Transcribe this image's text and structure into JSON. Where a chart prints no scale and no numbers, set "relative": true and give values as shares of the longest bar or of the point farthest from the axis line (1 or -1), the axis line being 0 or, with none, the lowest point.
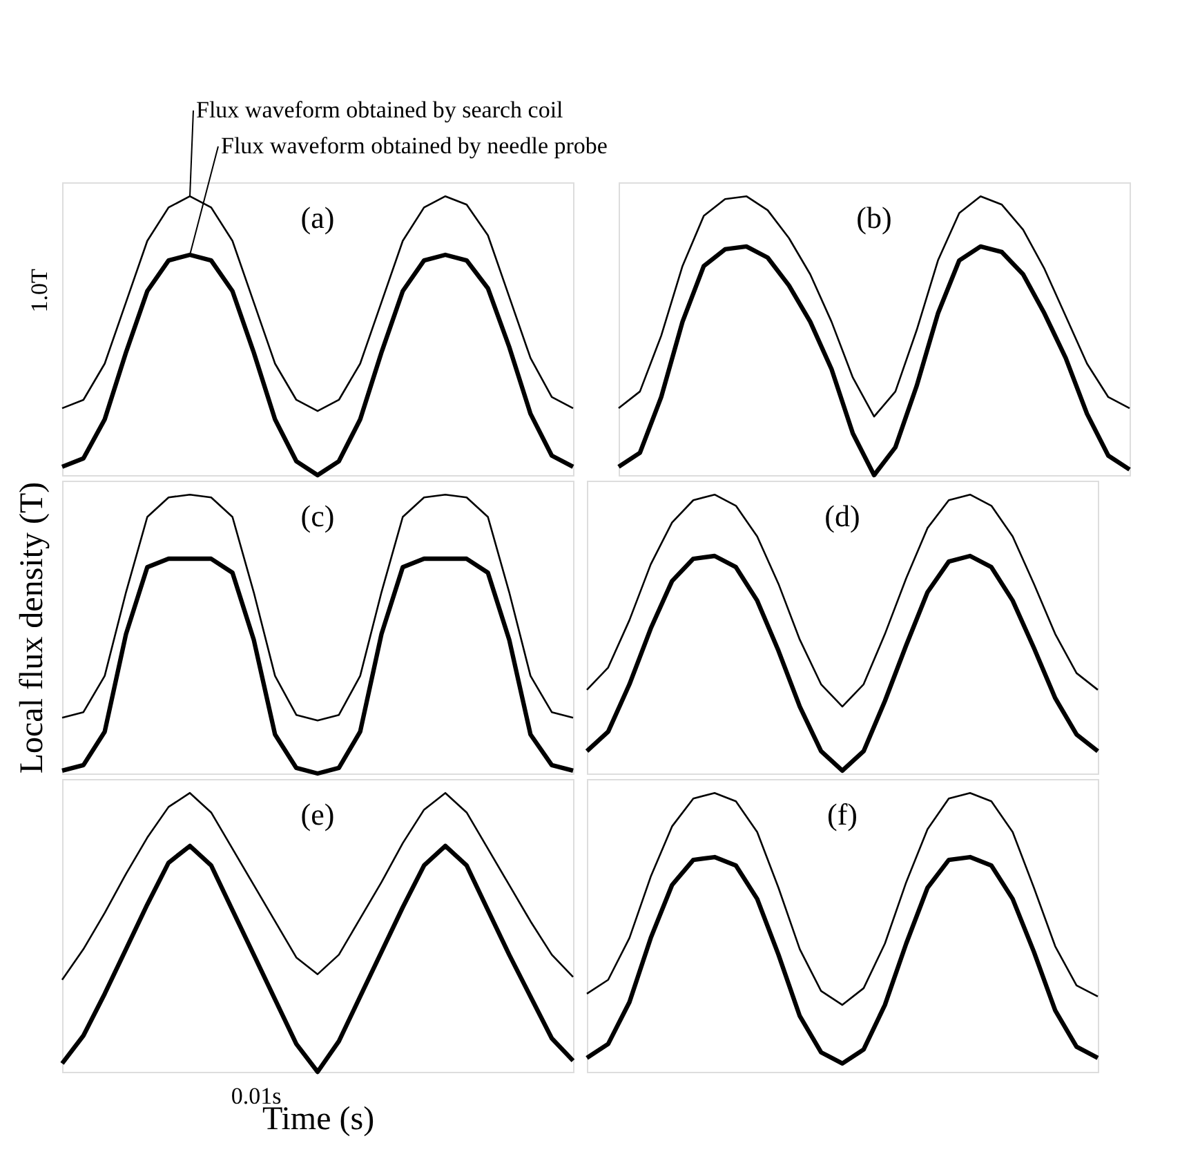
{
  "chart_data": [
    {
      "type": "line",
      "relative": true,
      "categories": [
        null,
        null,
        null,
        null,
        null,
        null,
        null,
        null,
        null,
        null,
        null,
        null,
        null,
        null,
        null,
        null,
        null,
        null,
        null,
        null,
        null,
        null,
        null,
        null,
        null
      ],
      "ylabel": null,
      "annotations": [
        "(a)",
        {
          "text": "1.0T"
        }
      ],
      "series": [
        {
          "name": "Flux waveform obtained by search coil",
          "color": "#000000",
          "values": [
            0.24,
            0.27,
            0.4,
            0.62,
            0.84,
            0.96,
            1.0,
            0.96,
            0.84,
            0.62,
            0.4,
            0.27,
            0.23,
            0.27,
            0.4,
            0.62,
            0.84,
            0.96,
            1.0,
            0.97,
            0.86,
            0.64,
            0.42,
            0.28,
            0.24
          ]
        },
        {
          "name": "Flux waveform obtained by needle probe",
          "color": "#000000",
          "values": [
            0.03,
            0.06,
            0.2,
            0.44,
            0.66,
            0.77,
            0.79,
            0.77,
            0.66,
            0.44,
            0.2,
            0.05,
            0.0,
            0.05,
            0.2,
            0.44,
            0.66,
            0.77,
            0.79,
            0.77,
            0.67,
            0.46,
            0.22,
            0.07,
            0.03
          ]
        }
      ]
    },
    {
      "type": "line",
      "relative": true,
      "categories": [
        null,
        null,
        null,
        null,
        null,
        null,
        null,
        null,
        null,
        null,
        null,
        null,
        null,
        null,
        null,
        null,
        null,
        null,
        null,
        null,
        null,
        null,
        null,
        null,
        null
      ],
      "annotations": [
        "(b)"
      ],
      "series": [
        {
          "color": "#000000",
          "values": [
            0.24,
            0.3,
            0.5,
            0.75,
            0.93,
            0.99,
            1.0,
            0.95,
            0.85,
            0.72,
            0.55,
            0.35,
            0.21,
            0.3,
            0.52,
            0.77,
            0.94,
            1.0,
            0.97,
            0.88,
            0.74,
            0.57,
            0.4,
            0.28,
            0.24
          ]
        },
        {
          "color": "#000000",
          "values": [
            0.03,
            0.08,
            0.28,
            0.55,
            0.75,
            0.81,
            0.82,
            0.78,
            0.68,
            0.55,
            0.38,
            0.15,
            0.0,
            0.1,
            0.32,
            0.58,
            0.77,
            0.82,
            0.8,
            0.72,
            0.58,
            0.42,
            0.22,
            0.07,
            0.02
          ]
        }
      ]
    },
    {
      "type": "line",
      "relative": true,
      "categories": [
        null,
        null,
        null,
        null,
        null,
        null,
        null,
        null,
        null,
        null,
        null,
        null,
        null,
        null,
        null,
        null,
        null,
        null,
        null,
        null,
        null,
        null,
        null,
        null,
        null
      ],
      "ylabel": "Local flux density (T)",
      "annotations": [
        "(c)"
      ],
      "series": [
        {
          "color": "#000000",
          "values": [
            0.2,
            0.22,
            0.35,
            0.65,
            0.92,
            0.99,
            1.0,
            0.99,
            0.92,
            0.65,
            0.35,
            0.21,
            0.19,
            0.21,
            0.35,
            0.65,
            0.92,
            0.99,
            1.0,
            0.99,
            0.92,
            0.65,
            0.35,
            0.22,
            0.2
          ]
        },
        {
          "color": "#000000",
          "values": [
            0.01,
            0.03,
            0.15,
            0.5,
            0.74,
            0.77,
            0.77,
            0.77,
            0.72,
            0.48,
            0.14,
            0.02,
            0.0,
            0.02,
            0.15,
            0.5,
            0.74,
            0.77,
            0.77,
            0.77,
            0.72,
            0.48,
            0.14,
            0.03,
            0.01
          ]
        }
      ]
    },
    {
      "type": "line",
      "relative": true,
      "categories": [
        null,
        null,
        null,
        null,
        null,
        null,
        null,
        null,
        null,
        null,
        null,
        null,
        null,
        null,
        null,
        null,
        null,
        null,
        null,
        null,
        null,
        null,
        null,
        null,
        null
      ],
      "annotations": [
        "(d)"
      ],
      "series": [
        {
          "color": "#000000",
          "values": [
            0.3,
            0.38,
            0.55,
            0.75,
            0.9,
            0.98,
            1.0,
            0.96,
            0.85,
            0.68,
            0.48,
            0.32,
            0.24,
            0.32,
            0.5,
            0.7,
            0.88,
            0.98,
            1.0,
            0.96,
            0.85,
            0.68,
            0.5,
            0.36,
            0.3
          ]
        },
        {
          "color": "#000000",
          "values": [
            0.08,
            0.15,
            0.32,
            0.52,
            0.69,
            0.77,
            0.78,
            0.74,
            0.62,
            0.44,
            0.24,
            0.08,
            0.01,
            0.08,
            0.26,
            0.46,
            0.65,
            0.76,
            0.78,
            0.74,
            0.62,
            0.45,
            0.27,
            0.14,
            0.08
          ]
        }
      ]
    },
    {
      "type": "line",
      "relative": true,
      "categories": [
        null,
        null,
        null,
        null,
        null,
        null,
        null,
        null,
        null,
        null,
        null,
        null,
        null,
        null,
        null,
        null,
        null,
        null,
        null,
        null,
        null,
        null,
        null,
        null,
        null
      ],
      "xlabel": "Time (s)",
      "annotations": [
        "(e)",
        {
          "text": "0.01s"
        }
      ],
      "series": [
        {
          "color": "#000000",
          "values": [
            0.33,
            0.44,
            0.57,
            0.71,
            0.84,
            0.95,
            1.0,
            0.93,
            0.8,
            0.67,
            0.54,
            0.41,
            0.35,
            0.42,
            0.55,
            0.68,
            0.82,
            0.94,
            1.0,
            0.93,
            0.8,
            0.67,
            0.54,
            0.42,
            0.34
          ]
        },
        {
          "color": "#000000",
          "values": [
            0.03,
            0.13,
            0.28,
            0.44,
            0.6,
            0.75,
            0.81,
            0.74,
            0.58,
            0.42,
            0.26,
            0.1,
            0.0,
            0.11,
            0.27,
            0.43,
            0.59,
            0.74,
            0.81,
            0.74,
            0.58,
            0.42,
            0.27,
            0.12,
            0.04
          ]
        }
      ]
    },
    {
      "type": "line",
      "relative": true,
      "categories": [
        null,
        null,
        null,
        null,
        null,
        null,
        null,
        null,
        null,
        null,
        null,
        null,
        null,
        null,
        null,
        null,
        null,
        null,
        null,
        null,
        null,
        null,
        null,
        null,
        null
      ],
      "annotations": [
        "(f)"
      ],
      "series": [
        {
          "color": "#000000",
          "values": [
            0.28,
            0.33,
            0.48,
            0.7,
            0.88,
            0.98,
            1.0,
            0.97,
            0.86,
            0.66,
            0.44,
            0.29,
            0.24,
            0.3,
            0.46,
            0.68,
            0.87,
            0.98,
            1.0,
            0.97,
            0.86,
            0.66,
            0.45,
            0.31,
            0.27
          ]
        },
        {
          "color": "#000000",
          "values": [
            0.05,
            0.1,
            0.25,
            0.48,
            0.67,
            0.76,
            0.77,
            0.74,
            0.62,
            0.42,
            0.2,
            0.07,
            0.03,
            0.08,
            0.24,
            0.46,
            0.66,
            0.76,
            0.77,
            0.74,
            0.62,
            0.43,
            0.22,
            0.09,
            0.05
          ]
        }
      ]
    }
  ]
}
